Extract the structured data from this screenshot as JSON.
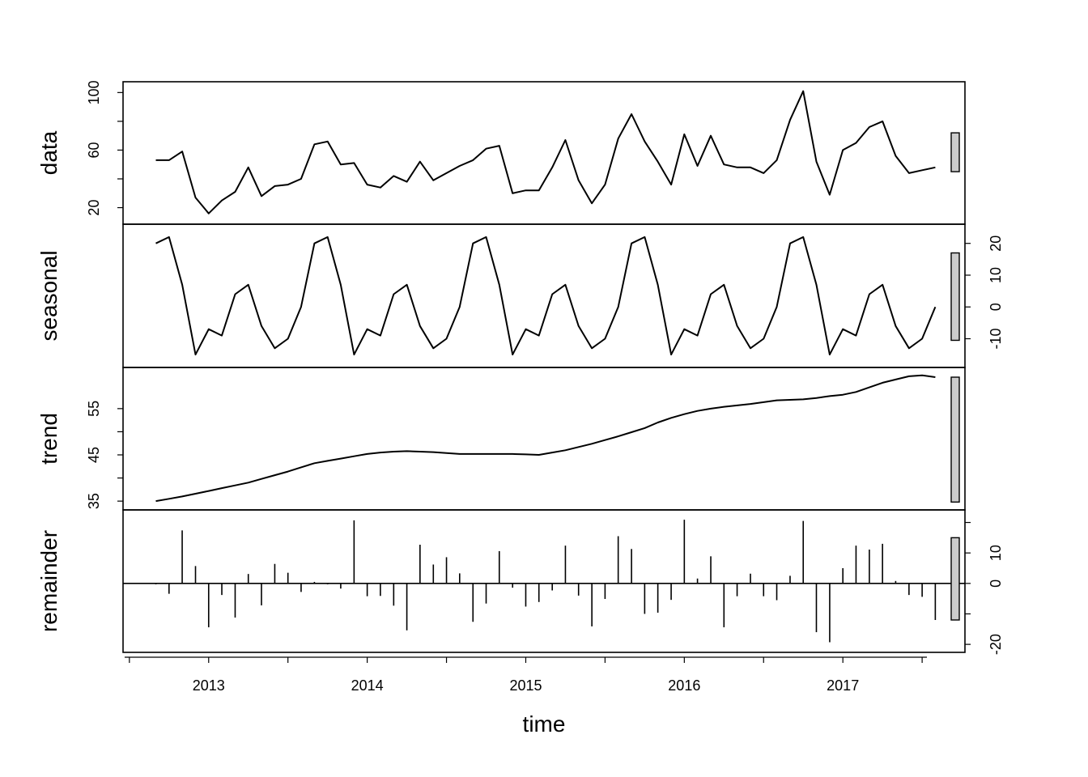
{
  "chart_data": {
    "type": "line",
    "xlabel": "time",
    "x_ticks": [
      2013,
      2014,
      2015,
      2016,
      2017
    ],
    "x": [
      2012.667,
      2012.75,
      2012.833,
      2012.917,
      2013.0,
      2013.083,
      2013.167,
      2013.25,
      2013.333,
      2013.417,
      2013.5,
      2013.583,
      2013.667,
      2013.75,
      2013.833,
      2013.917,
      2014.0,
      2014.083,
      2014.167,
      2014.25,
      2014.333,
      2014.417,
      2014.5,
      2014.583,
      2014.667,
      2014.75,
      2014.833,
      2014.917,
      2015.0,
      2015.083,
      2015.167,
      2015.25,
      2015.333,
      2015.417,
      2015.5,
      2015.583,
      2015.667,
      2015.75,
      2015.833,
      2015.917,
      2016.0,
      2016.083,
      2016.167,
      2016.25,
      2016.333,
      2016.417,
      2016.5,
      2016.583,
      2016.667,
      2016.75,
      2016.833,
      2016.917,
      2017.0,
      2017.083,
      2017.167,
      2017.25,
      2017.333,
      2017.417,
      2017.5,
      2017.583
    ],
    "panels": [
      {
        "name": "data",
        "label": "data",
        "style": "line",
        "ylim": [
          13,
          103
        ],
        "ticks": [
          20,
          60,
          100
        ],
        "minor_ticks": [
          40,
          80
        ],
        "tick_side": "left",
        "values": [
          53,
          53,
          59,
          27,
          16,
          25,
          31,
          48,
          28,
          35,
          36,
          40,
          64,
          66,
          50,
          51,
          36,
          34,
          42,
          38,
          52,
          39,
          44,
          49,
          53,
          61,
          63,
          30,
          32,
          32,
          48,
          67,
          39,
          23,
          36,
          68,
          85,
          66,
          52,
          36,
          71,
          49,
          70,
          50,
          48,
          48,
          44,
          53,
          81,
          101,
          52,
          29,
          60,
          65,
          76,
          80,
          56,
          44,
          46,
          48
        ],
        "range_bar": [
          45,
          72
        ]
      },
      {
        "name": "seasonal",
        "label": "seasonal",
        "style": "line",
        "ylim": [
          -17,
          24
        ],
        "ticks": [
          -10,
          0,
          10,
          20
        ],
        "minor_ticks": [],
        "tick_side": "right",
        "values": [
          20,
          22,
          7,
          -15,
          -7,
          -9,
          4,
          7,
          -6,
          -13,
          -10,
          0,
          20,
          22,
          7,
          -15,
          -7,
          -9,
          4,
          7,
          -6,
          -13,
          -10,
          0,
          20,
          22,
          7,
          -15,
          -7,
          -9,
          4,
          7,
          -6,
          -13,
          -10,
          0,
          20,
          22,
          7,
          -15,
          -7,
          -9,
          4,
          7,
          -6,
          -13,
          -10,
          0,
          20,
          22,
          7,
          -15,
          -7,
          -9,
          4,
          7,
          -6,
          -13,
          -10,
          0
        ],
        "range_bar": [
          -10.5,
          17
        ]
      },
      {
        "name": "trend",
        "label": "trend",
        "style": "line",
        "ylim": [
          34.5,
          62.5
        ],
        "ticks": [
          35,
          45,
          55
        ],
        "minor_ticks": [
          40,
          50
        ],
        "tick_side": "left",
        "values": [
          35.0,
          35.5,
          36.0,
          36.6,
          37.2,
          37.8,
          38.4,
          39.0,
          39.8,
          40.6,
          41.4,
          42.3,
          43.2,
          43.7,
          44.2,
          44.7,
          45.2,
          45.5,
          45.7,
          45.8,
          45.7,
          45.6,
          45.4,
          45.2,
          45.2,
          45.2,
          45.2,
          45.2,
          45.1,
          45.0,
          45.5,
          46.0,
          46.7,
          47.4,
          48.2,
          49.0,
          49.9,
          50.8,
          52.0,
          53.0,
          53.8,
          54.5,
          55.0,
          55.4,
          55.7,
          56.0,
          56.4,
          56.8,
          56.9,
          57.0,
          57.3,
          57.7,
          58.0,
          58.6,
          59.6,
          60.6,
          61.3,
          62.0,
          62.2,
          61.8
        ],
        "range_bar": [
          34.8,
          61.8
        ]
      },
      {
        "name": "remainder",
        "label": "remainder",
        "style": "bars",
        "ylim": [
          -20.5,
          22
        ],
        "ticks": [
          -20,
          0,
          10
        ],
        "minor_ticks": [
          -10,
          20
        ],
        "tick_side": "right",
        "values": [
          -0.3,
          -3.4,
          17.4,
          5.7,
          -14.4,
          -3.8,
          -11.2,
          3.1,
          -7.2,
          6.4,
          3.5,
          -2.8,
          0.5,
          -0.3,
          -1.7,
          20.7,
          -4.2,
          -4.1,
          -7.3,
          -15.4,
          12.7,
          6.2,
          8.6,
          3.3,
          -12.6,
          -6.6,
          10.6,
          -1.4,
          -7.6,
          -6.1,
          -2.3,
          12.4,
          -4.0,
          -14.1,
          -5.1,
          15.5,
          11.3,
          -10.0,
          -9.6,
          -5.4,
          20.9,
          1.6,
          8.9,
          -14.4,
          -4.2,
          3.2,
          -4.2,
          -5.5,
          2.5,
          20.5,
          -16.0,
          -19.3,
          5.0,
          12.4,
          11.1,
          13.0,
          0.8,
          -3.8,
          -4.4,
          -12.0
        ],
        "range_bar": [
          -12,
          15
        ]
      }
    ]
  }
}
